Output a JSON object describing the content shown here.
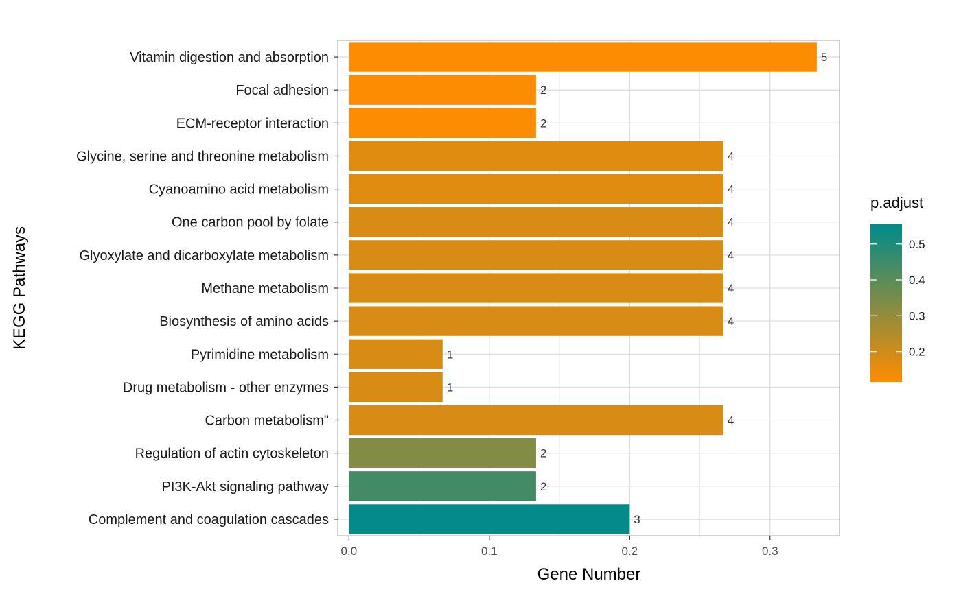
{
  "chart_data": {
    "type": "bar",
    "orientation": "horizontal",
    "xlabel": "Gene Number",
    "ylabel": "KEGG Pathways",
    "xlim": [
      -0.008,
      0.3495
    ],
    "x_ticks": [
      0.0,
      0.1,
      0.2,
      0.3
    ],
    "x_tick_labels": [
      "0.0",
      "0.1",
      "0.2",
      "0.3"
    ],
    "grid": true,
    "legend": {
      "title": "p.adjust",
      "placement": "right",
      "range": [
        0.115,
        0.555
      ],
      "ticks": [
        0.2,
        0.3,
        0.4,
        0.5
      ],
      "tick_labels": [
        "0.2",
        "0.3",
        "0.4",
        "0.5"
      ],
      "low_color": "#FF8C00",
      "high_color": "#008B8B"
    },
    "categories": [
      "Vitamin digestion and absorption",
      "Focal adhesion",
      "ECM-receptor interaction",
      "Glycine, serine and threonine metabolism",
      "Cyanoamino acid metabolism",
      "One carbon pool by folate",
      "Glyoxylate and dicarboxylate metabolism",
      "Methane metabolism",
      "Biosynthesis of amino acids",
      "Pyrimidine metabolism",
      "Drug metabolism - other enzymes",
      "Carbon metabolism\"",
      "Regulation of actin cytoskeleton",
      "PI3K-Akt signaling pathway",
      "Complement and coagulation cascades"
    ],
    "values": [
      0.3333,
      0.1333,
      0.1333,
      0.2667,
      0.2667,
      0.2667,
      0.2667,
      0.2667,
      0.2667,
      0.0667,
      0.0667,
      0.2667,
      0.1333,
      0.1333,
      0.2
    ],
    "counts": [
      "5",
      "2",
      "2",
      "4",
      "4",
      "4",
      "4",
      "4",
      "4",
      "1",
      "1",
      "4",
      "2",
      "2",
      "3"
    ],
    "p_adjust": [
      0.12,
      0.12,
      0.12,
      0.17,
      0.17,
      0.18,
      0.18,
      0.18,
      0.18,
      0.18,
      0.18,
      0.18,
      0.33,
      0.44,
      0.55
    ]
  }
}
